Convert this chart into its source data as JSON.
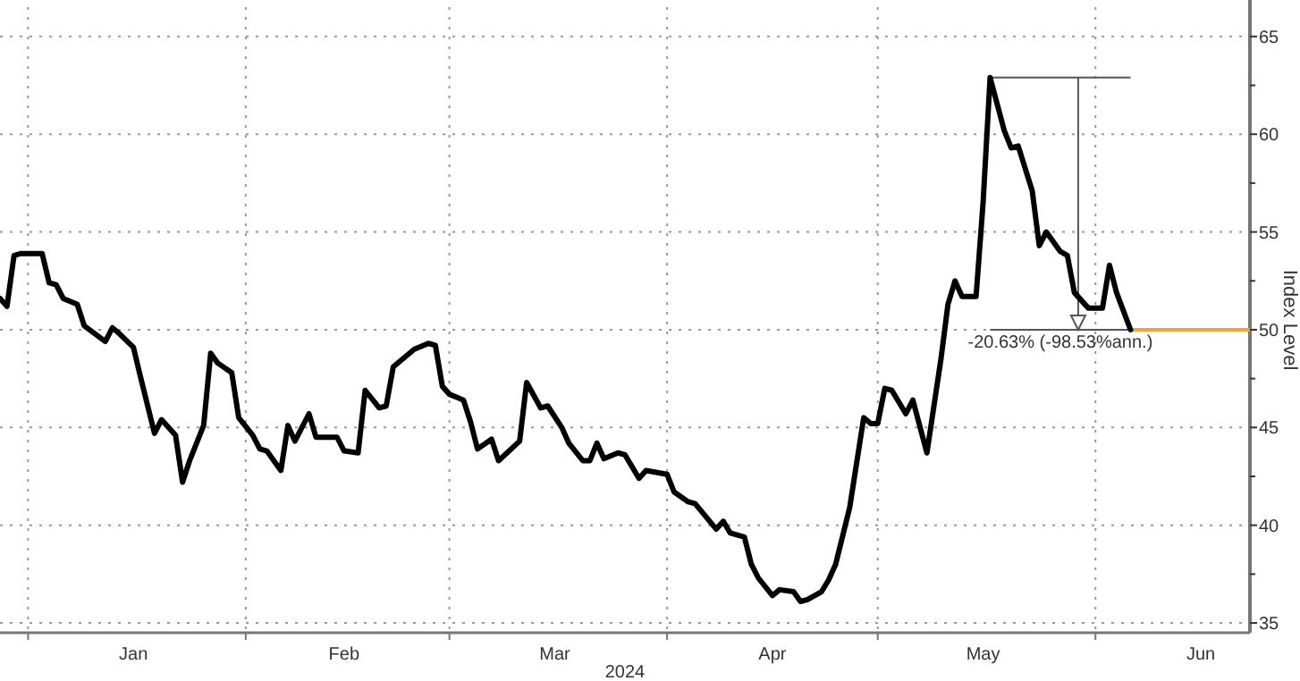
{
  "chart_data": {
    "type": "line",
    "xlabel": "2024",
    "ylabel": "Index Level",
    "x": [
      "2023-12-28",
      "2023-12-29",
      "2023-12-30",
      "2023-12-31",
      "2024-01-03",
      "2024-01-04",
      "2024-01-05",
      "2024-01-06",
      "2024-01-08",
      "2024-01-09",
      "2024-01-12",
      "2024-01-13",
      "2024-01-14",
      "2024-01-16",
      "2024-01-17",
      "2024-01-19",
      "2024-01-20",
      "2024-01-22",
      "2024-01-23",
      "2024-01-24",
      "2024-01-26",
      "2024-01-27",
      "2024-01-28",
      "2024-01-30",
      "2024-01-31",
      "2024-02-02",
      "2024-02-03",
      "2024-02-04",
      "2024-02-06",
      "2024-02-07",
      "2024-02-08",
      "2024-02-10",
      "2024-02-11",
      "2024-02-14",
      "2024-02-15",
      "2024-02-17",
      "2024-02-18",
      "2024-02-20",
      "2024-02-21",
      "2024-02-22",
      "2024-02-25",
      "2024-02-27",
      "2024-02-28",
      "2024-02-29",
      "2024-03-01",
      "2024-03-03",
      "2024-03-04",
      "2024-03-05",
      "2024-03-07",
      "2024-03-08",
      "2024-03-11",
      "2024-03-12",
      "2024-03-14",
      "2024-03-15",
      "2024-03-17",
      "2024-03-18",
      "2024-03-20",
      "2024-03-21",
      "2024-03-22",
      "2024-03-23",
      "2024-03-25",
      "2024-03-26",
      "2024-03-28",
      "2024-03-29",
      "2024-04-01",
      "2024-04-02",
      "2024-04-04",
      "2024-04-05",
      "2024-04-08",
      "2024-04-09",
      "2024-04-10",
      "2024-04-12",
      "2024-04-13",
      "2024-04-14",
      "2024-04-16",
      "2024-04-17",
      "2024-04-19",
      "2024-04-20",
      "2024-04-21",
      "2024-04-23",
      "2024-04-24",
      "2024-04-25",
      "2024-04-27",
      "2024-04-29",
      "2024-04-30",
      "2024-05-01",
      "2024-05-02",
      "2024-05-03",
      "2024-05-05",
      "2024-05-06",
      "2024-05-08",
      "2024-05-09",
      "2024-05-10",
      "2024-05-11",
      "2024-05-12",
      "2024-05-13",
      "2024-05-15",
      "2024-05-16",
      "2024-05-17",
      "2024-05-19",
      "2024-05-20",
      "2024-05-21",
      "2024-05-23",
      "2024-05-24",
      "2024-05-25",
      "2024-05-27",
      "2024-05-28",
      "2024-05-29",
      "2024-05-31",
      "2024-06-02",
      "2024-06-03",
      "2024-06-04",
      "2024-06-06"
    ],
    "series": [
      {
        "color": "#000000",
        "values": [
          51.6,
          51.2,
          53.8,
          53.9,
          53.9,
          52.4,
          52.3,
          51.6,
          51.3,
          50.2,
          49.4,
          50.1,
          49.8,
          49.1,
          47.6,
          44.7,
          45.4,
          44.6,
          42.2,
          43.3,
          45.1,
          48.8,
          48.3,
          47.8,
          45.5,
          44.6,
          43.9,
          43.8,
          42.8,
          45.1,
          44.3,
          45.7,
          44.5,
          44.5,
          43.8,
          43.7,
          46.9,
          46.0,
          46.1,
          48.1,
          49.0,
          49.3,
          49.2,
          47.1,
          46.7,
          46.4,
          45.3,
          43.9,
          44.4,
          43.3,
          44.3,
          47.3,
          46.0,
          46.1,
          45.0,
          44.2,
          43.3,
          43.3,
          44.2,
          43.4,
          43.7,
          43.6,
          42.4,
          42.8,
          42.6,
          41.7,
          41.2,
          41.1,
          39.8,
          40.2,
          39.6,
          39.4,
          38.0,
          37.3,
          36.4,
          36.7,
          36.6,
          36.1,
          36.2,
          36.6,
          37.2,
          38.0,
          40.9,
          45.5,
          45.2,
          45.2,
          47.0,
          46.9,
          45.7,
          46.4,
          43.7,
          46.1,
          48.5,
          51.3,
          52.5,
          51.7,
          51.7,
          56.5,
          62.9,
          60.2,
          59.3,
          59.4,
          57.1,
          54.3,
          55.0,
          54.0,
          53.8,
          51.9,
          51.1,
          51.1,
          53.3,
          51.9,
          50.0
        ]
      }
    ],
    "xlim": [
      "2023-12-28",
      "2024-06-23"
    ],
    "xticks": [
      {
        "value": "2024-01-01",
        "label": null
      },
      {
        "value": "2024-01-16",
        "label": "Jan"
      },
      {
        "value": "2024-02-01",
        "label": null
      },
      {
        "value": "2024-02-15",
        "label": "Feb"
      },
      {
        "value": "2024-03-01",
        "label": null
      },
      {
        "value": "2024-03-16",
        "label": "Mar"
      },
      {
        "value": "2024-04-01",
        "label": null
      },
      {
        "value": "2024-04-16",
        "label": "Apr"
      },
      {
        "value": "2024-05-01",
        "label": null
      },
      {
        "value": "2024-05-16",
        "label": "May"
      },
      {
        "value": "2024-06-01",
        "label": null
      },
      {
        "value": "2024-06-16",
        "label": "Jun"
      }
    ],
    "ylim": [
      34.5,
      66.5
    ],
    "yticks": [
      35,
      {
        "value": 37.5,
        "label": null
      },
      40,
      {
        "value": 42.5,
        "label": null
      },
      45,
      {
        "value": 47.5,
        "label": null
      },
      50,
      {
        "value": 52.5,
        "label": null
      },
      55,
      {
        "value": 57.5,
        "label": null
      },
      60,
      {
        "value": 62.5,
        "label": null
      },
      65
    ],
    "grid": true,
    "marker": "none",
    "line_style": "solid",
    "ref_lines": [
      {
        "axis": "y",
        "value": 50,
        "color": "#f7a13b"
      }
    ],
    "annotations": [
      "-20.63% (-98.53%ann.)"
    ]
  }
}
